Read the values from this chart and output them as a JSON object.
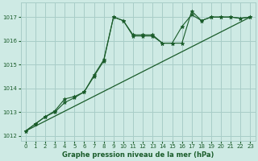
{
  "title": "Graphe pression niveau de la mer (hPa)",
  "bg_color": "#ceeae4",
  "grid_color": "#a8cdc8",
  "line_color": "#1a5c2a",
  "xlim": [
    -0.5,
    23.5
  ],
  "ylim": [
    1011.8,
    1017.6
  ],
  "yticks": [
    1012,
    1013,
    1014,
    1015,
    1016,
    1017
  ],
  "xticks": [
    0,
    1,
    2,
    3,
    4,
    5,
    6,
    7,
    8,
    9,
    10,
    11,
    12,
    13,
    14,
    15,
    16,
    17,
    18,
    19,
    20,
    21,
    22,
    23
  ],
  "series_jagged1": {
    "x": [
      0,
      1,
      2,
      3,
      4,
      5,
      6,
      7,
      8,
      9,
      10,
      11,
      12,
      13,
      14,
      15,
      16,
      17,
      18,
      19,
      20,
      21,
      22,
      23
    ],
    "y": [
      1012.2,
      1012.5,
      1012.8,
      1013.0,
      1013.4,
      1013.6,
      1013.85,
      1014.5,
      1015.15,
      1017.0,
      1016.85,
      1016.2,
      1016.2,
      1016.2,
      1015.9,
      1015.9,
      1015.9,
      1017.25,
      1016.85,
      1017.0,
      1017.0,
      1017.0,
      1016.95,
      1017.0
    ]
  },
  "series_jagged2": {
    "x": [
      0,
      1,
      2,
      3,
      4,
      5,
      6,
      7,
      8,
      9,
      10,
      11,
      12,
      13,
      14,
      15,
      16,
      17,
      18,
      19,
      20,
      21,
      22,
      23
    ],
    "y": [
      1012.2,
      1012.5,
      1012.8,
      1013.05,
      1013.55,
      1013.65,
      1013.85,
      1014.55,
      1015.2,
      1017.0,
      1016.85,
      1016.25,
      1016.25,
      1016.25,
      1015.9,
      1015.9,
      1016.6,
      1017.1,
      1016.85,
      1017.0,
      1017.0,
      1017.0,
      1016.95,
      1017.0
    ]
  },
  "series_trend": {
    "x": [
      0,
      23
    ],
    "y": [
      1012.2,
      1017.0
    ]
  }
}
